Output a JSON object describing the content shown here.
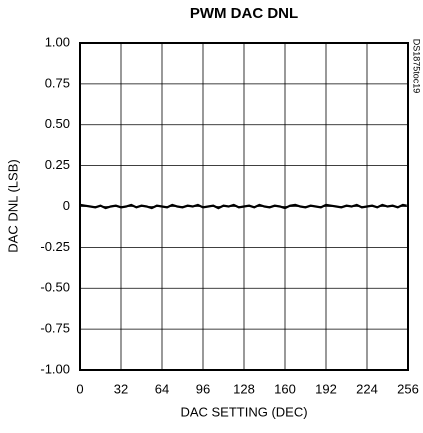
{
  "chart_data": {
    "type": "line",
    "title": "PWM DAC DNL",
    "x_label": "DAC SETTING (DEC)",
    "y_label": "DAC DNL (LSB)",
    "annotation": "DS1875toc19",
    "x": [
      0,
      4,
      8,
      12,
      16,
      20,
      24,
      28,
      32,
      36,
      40,
      44,
      48,
      52,
      56,
      60,
      64,
      68,
      72,
      76,
      80,
      84,
      88,
      92,
      96,
      100,
      104,
      108,
      112,
      116,
      120,
      124,
      128,
      132,
      136,
      140,
      144,
      148,
      152,
      156,
      160,
      164,
      168,
      172,
      176,
      180,
      184,
      188,
      192,
      196,
      200,
      204,
      208,
      212,
      216,
      220,
      224,
      228,
      232,
      236,
      240,
      244,
      248,
      252,
      255
    ],
    "values": [
      0.01,
      0.005,
      0,
      -0.005,
      0.005,
      -0.01,
      0,
      0.005,
      -0.005,
      0,
      0.01,
      -0.005,
      0.005,
      0,
      -0.01,
      0.005,
      0,
      -0.005,
      0.01,
      0,
      -0.005,
      0.005,
      0,
      0.01,
      -0.005,
      0,
      0.005,
      -0.01,
      0.005,
      0,
      0.01,
      -0.005,
      0,
      0.005,
      -0.005,
      0.01,
      0,
      -0.005,
      0.005,
      0,
      -0.01,
      0.005,
      0.01,
      0,
      -0.005,
      0.005,
      0,
      -0.005,
      0.01,
      0.005,
      0,
      -0.005,
      0.005,
      0,
      0.01,
      -0.005,
      0,
      0.005,
      -0.005,
      0.01,
      0,
      0.005,
      -0.005,
      0.01,
      0.005
    ],
    "color": "#000000",
    "xlim": [
      0,
      256
    ],
    "xticks": [
      0,
      32,
      64,
      96,
      128,
      160,
      192,
      224,
      256
    ],
    "ylim": [
      -1,
      1
    ],
    "yticks": [
      {
        "value": -1,
        "label": "-1.00"
      },
      -0.75,
      {
        "value": -0.5,
        "label": "-0.50"
      },
      -0.25,
      0,
      0.25,
      {
        "value": 0.5,
        "label": "0.50"
      },
      0.75,
      {
        "value": 1,
        "label": "1.00"
      }
    ],
    "grid": true
  }
}
